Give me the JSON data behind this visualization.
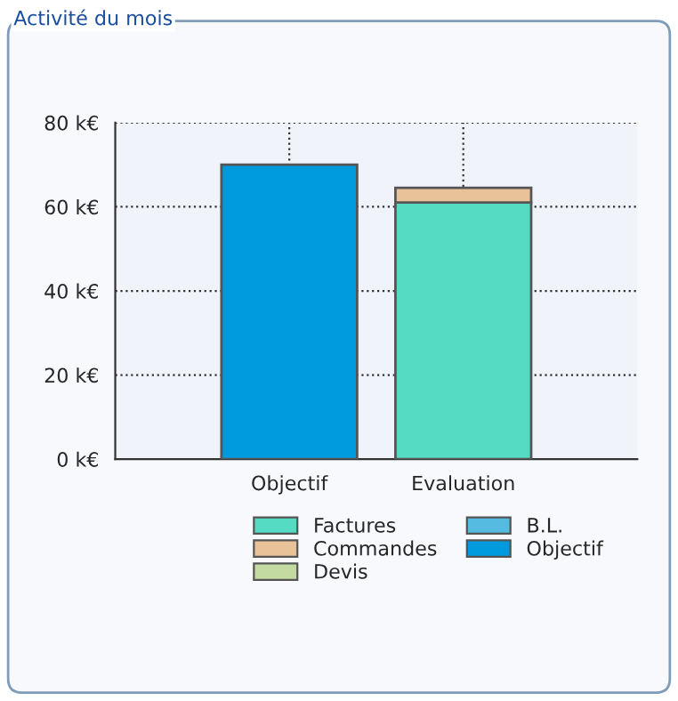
{
  "chart_data": {
    "type": "bar",
    "title": "Activité du mois",
    "stacked": true,
    "categories": [
      "Objectif",
      "Evaluation"
    ],
    "series": [
      {
        "name": "Factures",
        "color": "#55dbc3",
        "values": [
          null,
          61
        ]
      },
      {
        "name": "Commandes",
        "color": "#e8c39a",
        "values": [
          null,
          3.5
        ]
      },
      {
        "name": "Devis",
        "color": "#c3dba0",
        "values": [
          null,
          null
        ]
      },
      {
        "name": "B.L.",
        "color": "#55bbe0",
        "values": [
          null,
          null
        ]
      },
      {
        "name": "Objectif",
        "color": "#009bde",
        "values": [
          70,
          null
        ]
      }
    ],
    "ylim": [
      0,
      80
    ],
    "yticks": [
      {
        "value": 0,
        "label": "0 k€"
      },
      {
        "value": 20,
        "label": "20 k€"
      },
      {
        "value": 40,
        "label": "40 k€"
      },
      {
        "value": 60,
        "label": "60 k€"
      },
      {
        "value": 80,
        "label": "80 k€"
      }
    ],
    "grid": true,
    "legend": "bottom"
  }
}
